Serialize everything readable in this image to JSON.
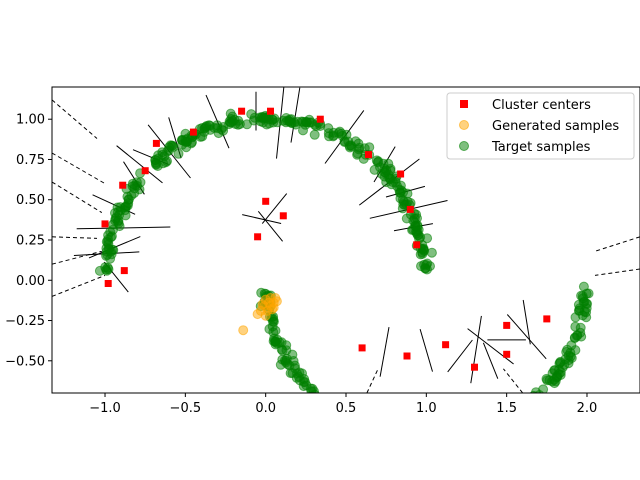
{
  "chart_data": {
    "type": "scatter",
    "title": "",
    "xlabel": "",
    "ylabel": "",
    "xlim": [
      -1.33,
      2.33
    ],
    "ylim": [
      -0.7,
      1.2
    ],
    "xticks": [
      -1.0,
      -0.5,
      0.0,
      0.5,
      1.0,
      1.5,
      2.0
    ],
    "xtick_labels": [
      "−1.0",
      "−0.5",
      "0.0",
      "0.5",
      "1.0",
      "1.5",
      "2.0"
    ],
    "yticks": [
      -0.5,
      -0.25,
      0.0,
      0.25,
      0.5,
      0.75,
      1.0
    ],
    "ytick_labels": [
      "−0.50",
      "−0.25",
      "0.00",
      "0.25",
      "0.50",
      "0.75",
      "1.00"
    ],
    "legend_position": "top-right",
    "series": [
      {
        "name": "Cluster centers",
        "marker": "square",
        "color": "#ff0000",
        "points": [
          [
            -0.88,
            0.06
          ],
          [
            -0.89,
            0.59
          ],
          [
            -0.68,
            0.85
          ],
          [
            -0.45,
            0.92
          ],
          [
            -0.15,
            1.05
          ],
          [
            0.03,
            1.05
          ],
          [
            0.34,
            1.0
          ],
          [
            0.64,
            0.78
          ],
          [
            0.84,
            0.66
          ],
          [
            0.9,
            0.44
          ],
          [
            0.94,
            0.22
          ],
          [
            0.11,
            0.4
          ],
          [
            0.0,
            0.49
          ],
          [
            -0.05,
            0.27
          ],
          [
            1.12,
            -0.4
          ],
          [
            1.3,
            -0.54
          ],
          [
            1.5,
            -0.46
          ],
          [
            1.5,
            -0.28
          ],
          [
            1.75,
            -0.24
          ],
          [
            -0.98,
            -0.02
          ],
          [
            -1.0,
            0.35
          ],
          [
            -0.75,
            0.68
          ],
          [
            0.6,
            -0.42
          ],
          [
            0.88,
            -0.47
          ]
        ]
      },
      {
        "name": "Generated samples",
        "marker": "circle",
        "color": "#ffa500",
        "points": [
          [
            0.0,
            -0.12
          ],
          [
            0.02,
            -0.14
          ],
          [
            0.03,
            -0.16
          ],
          [
            0.05,
            -0.14
          ],
          [
            0.06,
            -0.11
          ],
          [
            -0.01,
            -0.16
          ],
          [
            0.01,
            -0.19
          ],
          [
            0.04,
            -0.18
          ],
          [
            -0.03,
            -0.19
          ],
          [
            -0.05,
            -0.21
          ],
          [
            0.07,
            -0.13
          ],
          [
            0.03,
            -0.11
          ],
          [
            -0.02,
            -0.15
          ],
          [
            0.05,
            -0.17
          ],
          [
            -0.14,
            -0.31
          ],
          [
            0.0,
            -0.22
          ]
        ]
      },
      {
        "name": "Target samples",
        "marker": "circle",
        "color": "#008000",
        "points": []
      }
    ]
  }
}
